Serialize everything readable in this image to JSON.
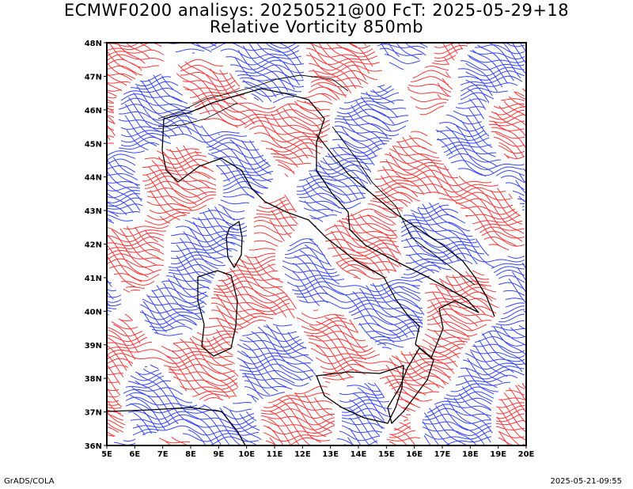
{
  "title": {
    "line1": "ECMWF0200 analisys: 20250521@00 FcT: 2025-05-29+18",
    "line2": "Relative Vorticity 850mb"
  },
  "footer": {
    "left": "GrADS/COLA",
    "right": "2025-05-21-09:55"
  },
  "map": {
    "lon_range": [
      5,
      20
    ],
    "lat_range": [
      36,
      48
    ],
    "lon_ticks": [
      "5E",
      "6E",
      "7E",
      "8E",
      "9E",
      "10E",
      "11E",
      "12E",
      "13E",
      "14E",
      "15E",
      "16E",
      "17E",
      "18E",
      "19E",
      "20E"
    ],
    "lat_ticks": [
      "36N",
      "37N",
      "38N",
      "39N",
      "40N",
      "41N",
      "42N",
      "43N",
      "44N",
      "45N",
      "46N",
      "47N",
      "48N"
    ],
    "positive_color": "#ff3333",
    "negative_color": "#3344ff",
    "coastline_color": "#000000"
  }
}
